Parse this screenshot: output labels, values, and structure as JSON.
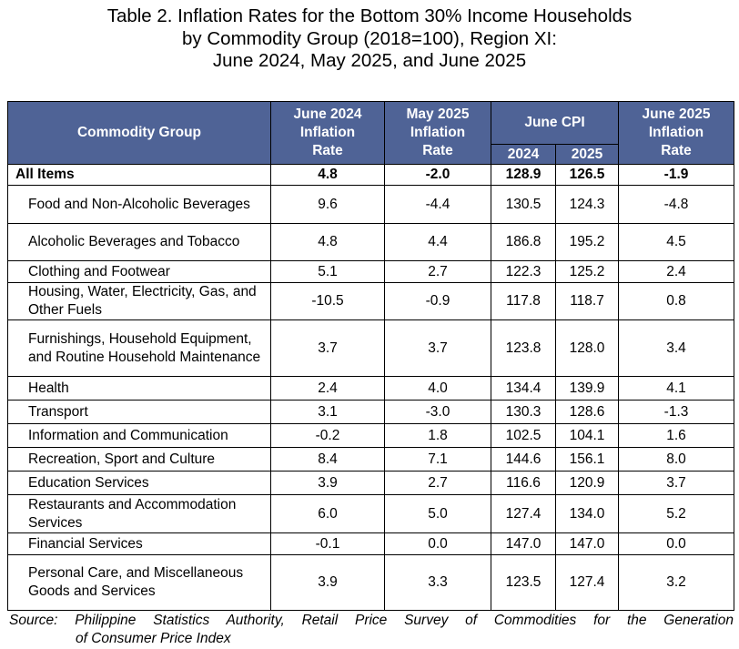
{
  "title": {
    "line1": "Table 2. Inflation Rates for the Bottom 30% Income Households",
    "line2": "by Commodity Group (2018=100), Region XI:",
    "line3": "June 2024, May 2025, and June 2025"
  },
  "headers": {
    "commodity": "Commodity Group",
    "june2024_line1": "June 2024",
    "june2024_line2": "Inflation",
    "june2024_line3": "Rate",
    "may2025_line1": "May 2025",
    "may2025_line2": "Inflation",
    "may2025_line3": "Rate",
    "june_cpi": "June CPI",
    "cpi_2024": "2024",
    "cpi_2025": "2025",
    "june2025_line1": "June 2025",
    "june2025_line2": "Inflation",
    "june2025_line3": "Rate"
  },
  "rows": [
    {
      "name": "All Items",
      "jun24": "4.8",
      "may25": "-2.0",
      "cpi24": "128.9",
      "cpi25": "126.5",
      "jun25": "-1.9"
    },
    {
      "name": "Food and Non-Alcoholic Beverages",
      "jun24": "9.6",
      "may25": "-4.4",
      "cpi24": "130.5",
      "cpi25": "124.3",
      "jun25": "-4.8"
    },
    {
      "name": "Alcoholic Beverages and Tobacco",
      "jun24": "4.8",
      "may25": "4.4",
      "cpi24": "186.8",
      "cpi25": "195.2",
      "jun25": "4.5"
    },
    {
      "name": "Clothing and Footwear",
      "jun24": "5.1",
      "may25": "2.7",
      "cpi24": "122.3",
      "cpi25": "125.2",
      "jun25": "2.4"
    },
    {
      "name": "Housing, Water, Electricity, Gas, and Other Fuels",
      "jun24": "-10.5",
      "may25": "-0.9",
      "cpi24": "117.8",
      "cpi25": "118.7",
      "jun25": "0.8"
    },
    {
      "name": "Furnishings, Household Equipment, and Routine Household Maintenance",
      "jun24": "3.7",
      "may25": "3.7",
      "cpi24": "123.8",
      "cpi25": "128.0",
      "jun25": "3.4"
    },
    {
      "name": "Health",
      "jun24": "2.4",
      "may25": "4.0",
      "cpi24": "134.4",
      "cpi25": "139.9",
      "jun25": "4.1"
    },
    {
      "name": "Transport",
      "jun24": "3.1",
      "may25": "-3.0",
      "cpi24": "130.3",
      "cpi25": "128.6",
      "jun25": "-1.3"
    },
    {
      "name": "Information and Communication",
      "jun24": "-0.2",
      "may25": "1.8",
      "cpi24": "102.5",
      "cpi25": "104.1",
      "jun25": "1.6"
    },
    {
      "name": "Recreation, Sport and Culture",
      "jun24": "8.4",
      "may25": "7.1",
      "cpi24": "144.6",
      "cpi25": "156.1",
      "jun25": "8.0"
    },
    {
      "name": "Education Services",
      "jun24": "3.9",
      "may25": "2.7",
      "cpi24": "116.6",
      "cpi25": "120.9",
      "jun25": "3.7"
    },
    {
      "name": "Restaurants and Accommodation Services",
      "jun24": "6.0",
      "may25": "5.0",
      "cpi24": "127.4",
      "cpi25": "134.0",
      "jun25": "5.2"
    },
    {
      "name": "Financial Services",
      "jun24": "-0.1",
      "may25": "0.0",
      "cpi24": "147.0",
      "cpi25": "147.0",
      "jun25": "0.0"
    },
    {
      "name": "Personal Care, and Miscellaneous Goods and Services",
      "jun24": "3.9",
      "may25": "3.3",
      "cpi24": "123.5",
      "cpi25": "127.4",
      "jun25": "3.2"
    }
  ],
  "source": {
    "line1": "Source: Philippine Statistics Authority, Retail Price Survey of Commodities for the Generation",
    "line2": "of Consumer Price Index"
  },
  "colors": {
    "header_bg": "#4f6396",
    "header_text": "#ffffff"
  }
}
